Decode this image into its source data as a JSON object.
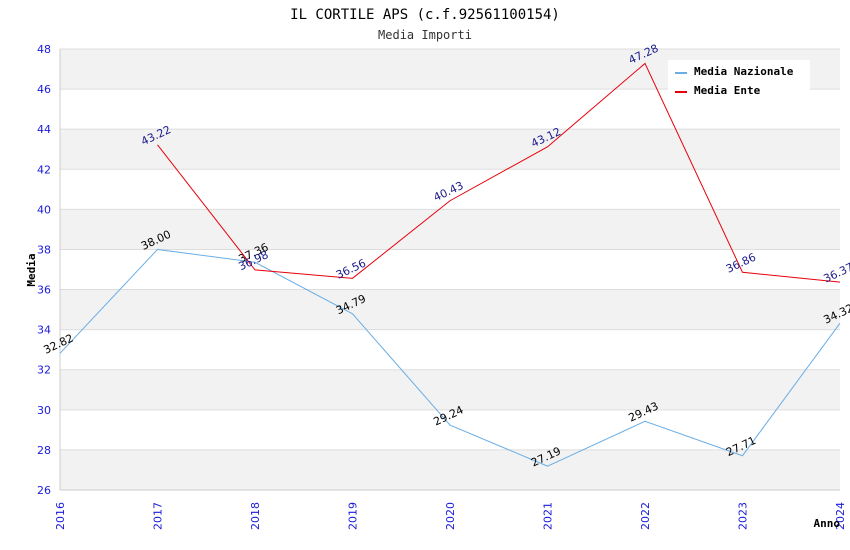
{
  "chart_data": {
    "type": "line",
    "title": "IL CORTILE APS (c.f.92561100154)",
    "subtitle": "Media Importi",
    "xlabel": "Anno",
    "ylabel": "Media",
    "ylim": [
      26,
      48
    ],
    "yticks": [
      "26",
      "28",
      "30",
      "32",
      "34",
      "36",
      "38",
      "40",
      "42",
      "44",
      "46",
      "48"
    ],
    "x": [
      "2016",
      "2017",
      "2018",
      "2019",
      "2020",
      "2021",
      "2022",
      "2023",
      "2024"
    ],
    "grid": "horizontal alternating bands",
    "legend_position": "top-right",
    "series": [
      {
        "name": "Media Nazionale",
        "color": "#6aaee6",
        "label_color": "#000000",
        "values": [
          32.82,
          38.0,
          37.36,
          34.79,
          29.24,
          27.19,
          29.43,
          27.71,
          34.32
        ],
        "labels": [
          "32.82",
          "38.00",
          "37.36",
          "34.79",
          "29.24",
          "27.19",
          "29.43",
          "27.71",
          "34.32"
        ]
      },
      {
        "name": "Media Ente",
        "color": "#e8000b",
        "label_color": "#1a1a8c",
        "values": [
          null,
          43.22,
          36.98,
          36.56,
          40.43,
          43.12,
          47.28,
          36.86,
          36.37
        ],
        "labels": [
          "",
          "43.22",
          "36.98",
          "36.56",
          "40.43",
          "43.12",
          "47.28",
          "36.86",
          "36.37"
        ]
      }
    ]
  }
}
